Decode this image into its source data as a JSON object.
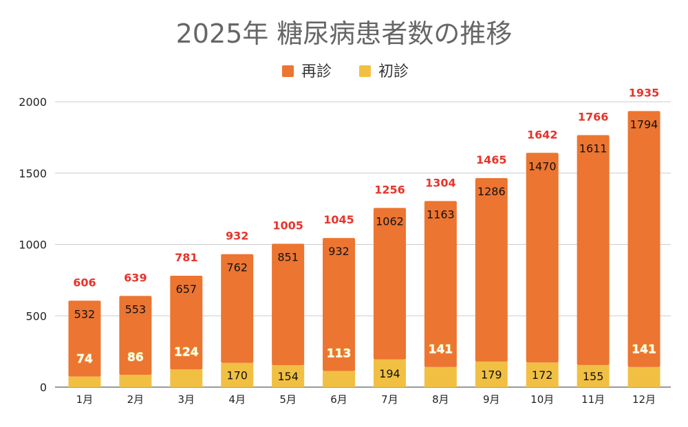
{
  "chart_data": {
    "type": "bar",
    "stacked": true,
    "title": "2025年 糖尿病患者数の推移",
    "categories": [
      "1月",
      "2月",
      "3月",
      "4月",
      "5月",
      "6月",
      "7月",
      "8月",
      "9月",
      "10月",
      "11月",
      "12月"
    ],
    "series": [
      {
        "name": "初診",
        "color": "#f1c043",
        "values": [
          74,
          86,
          124,
          170,
          154,
          113,
          194,
          141,
          179,
          172,
          155,
          141
        ]
      },
      {
        "name": "再診",
        "color": "#ec7531",
        "values": [
          532,
          553,
          657,
          762,
          851,
          932,
          1062,
          1163,
          1286,
          1470,
          1611,
          1794
        ]
      }
    ],
    "totals": [
      606,
      639,
      781,
      932,
      1005,
      1045,
      1256,
      1304,
      1465,
      1642,
      1766,
      1935
    ],
    "total_label_color": "#e8332a",
    "ylim": [
      0,
      2000
    ],
    "yticks": [
      0,
      500,
      1000,
      1500,
      2000
    ],
    "grid": true,
    "legend": "top-center",
    "legend_order": [
      "再診",
      "初診"
    ],
    "xlabel": "",
    "ylabel": ""
  }
}
